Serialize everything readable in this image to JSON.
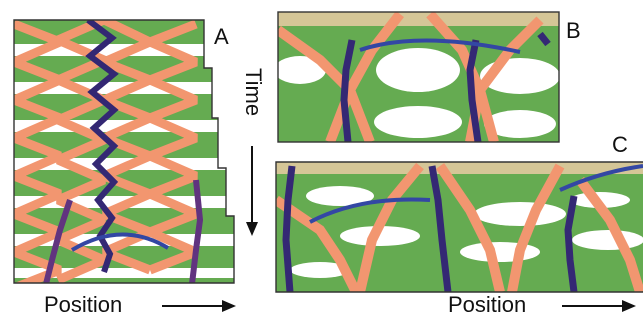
{
  "panels": {
    "a": {
      "letter": "A"
    },
    "b": {
      "letter": "B"
    },
    "c": {
      "letter": "C"
    }
  },
  "labels": {
    "time": "Time",
    "position_left": "Position",
    "position_right": "Position"
  },
  "colors": {
    "green": "#5fa84a",
    "green_dark": "#3f8f37",
    "orange": "#f2926a",
    "navy": "#2b1f6e",
    "purple": "#5a2b7a",
    "blue": "#2a3fa0",
    "white": "#ffffff",
    "frame": "#333333",
    "ink": "#111111"
  }
}
